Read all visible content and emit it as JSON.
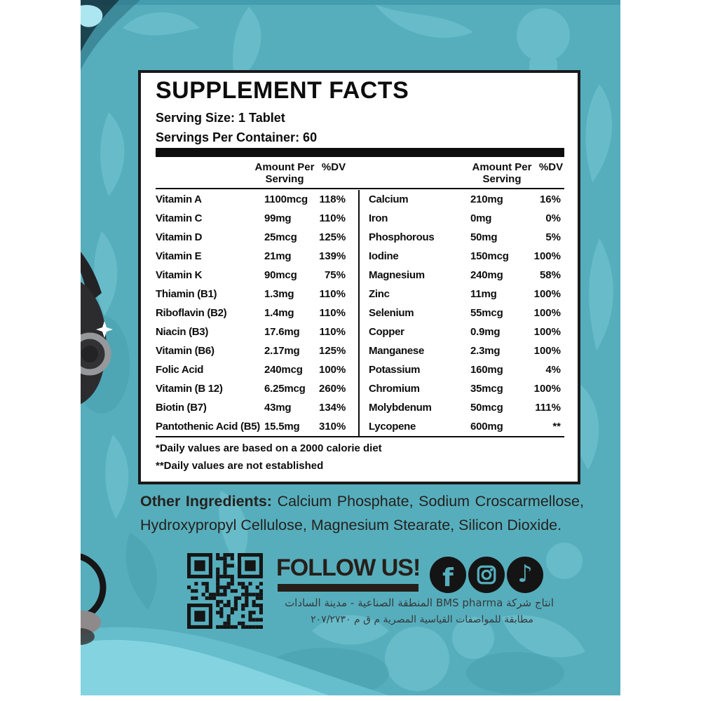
{
  "panel": {
    "title": "SUPPLEMENT FACTS",
    "serving_size": "Serving Size: 1 Tablet",
    "servings_per_container": "Servings Per Container: 60",
    "header_amount_line1": "Amount Per",
    "header_amount_line2": "Serving",
    "header_dv": "%DV",
    "left_rows": [
      {
        "name": "Vitamin A",
        "amount": "1100mcg",
        "dv": "118%"
      },
      {
        "name": "Vitamin C",
        "amount": "99mg",
        "dv": "110%"
      },
      {
        "name": "Vitamin D",
        "amount": "25mcg",
        "dv": "125%"
      },
      {
        "name": "Vitamin E",
        "amount": "21mg",
        "dv": "139%"
      },
      {
        "name": "Vitamin K",
        "amount": "90mcg",
        "dv": "75%"
      },
      {
        "name": "Thiamin (B1)",
        "amount": "1.3mg",
        "dv": "110%"
      },
      {
        "name": "Riboflavin (B2)",
        "amount": "1.4mg",
        "dv": "110%"
      },
      {
        "name": "Niacin (B3)",
        "amount": "17.6mg",
        "dv": "110%"
      },
      {
        "name": "Vitamin (B6)",
        "amount": "2.17mg",
        "dv": "125%"
      },
      {
        "name": "Folic Acid",
        "amount": "240mcg",
        "dv": "100%"
      },
      {
        "name": "Vitamin (B 12)",
        "amount": "6.25mcg",
        "dv": "260%"
      },
      {
        "name": "Biotin (B7)",
        "amount": "43mg",
        "dv": "134%"
      },
      {
        "name": "Pantothenic Acid (B5)",
        "amount": "15.5mg",
        "dv": "310%"
      }
    ],
    "right_rows": [
      {
        "name": "Calcium",
        "amount": "210mg",
        "dv": "16%"
      },
      {
        "name": "Iron",
        "amount": "0mg",
        "dv": "0%"
      },
      {
        "name": "Phosphorous",
        "amount": "50mg",
        "dv": "5%"
      },
      {
        "name": "Iodine",
        "amount": "150mcg",
        "dv": "100%"
      },
      {
        "name": "Magnesium",
        "amount": "240mg",
        "dv": "58%"
      },
      {
        "name": "Zinc",
        "amount": "11mg",
        "dv": "100%"
      },
      {
        "name": "Selenium",
        "amount": "55mcg",
        "dv": "100%"
      },
      {
        "name": "Copper",
        "amount": "0.9mg",
        "dv": "100%"
      },
      {
        "name": "Manganese",
        "amount": "2.3mg",
        "dv": "100%"
      },
      {
        "name": "Potassium",
        "amount": "160mg",
        "dv": "4%"
      },
      {
        "name": "Chromium",
        "amount": "35mcg",
        "dv": "100%"
      },
      {
        "name": "Molybdenum",
        "amount": "50mcg",
        "dv": "111%"
      },
      {
        "name": "Lycopene",
        "amount": "600mg",
        "dv": "**"
      }
    ],
    "footnote1": "*Daily values are based on a 2000 calorie diet",
    "footnote2": "**Daily values are not established"
  },
  "other_ingredients": {
    "lead": "Other Ingredients:",
    "text": "Calcium Phosphate, Sodium Croscarmellose, Hydroxypropyl Cellulose, Magnesium Stearate, Silicon Dioxide."
  },
  "footer": {
    "follow_us": "FOLLOW US!",
    "icon_glyphs": {
      "facebook": "f",
      "tiktok": "♪"
    },
    "arabic_line1": "انتاج شركة BMS pharma المنطقة الصناعية - مدينة السادات",
    "arabic_line2": "مطابقة للمواصفات القياسية المصرية م ق م ٢٠٧/٢٧٣٠"
  },
  "colors": {
    "background_teal": "#56aebd",
    "panel_bg": "#ffffff",
    "panel_border": "#1a1a1a",
    "text_black": "#0d0d0d",
    "ingredients_text": "#26211d",
    "follow_us_text": "#261f19",
    "social_icon_bg": "#141414",
    "wave_light": "#83d3e1",
    "qr_dark": "#151515"
  }
}
